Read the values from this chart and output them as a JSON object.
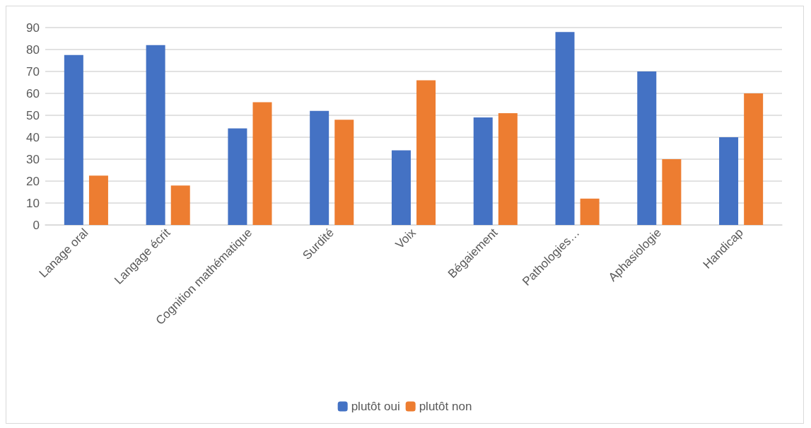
{
  "chart_data": {
    "type": "bar",
    "categories": [
      "Lanage oral",
      "Langage écrit",
      "Cognition mathématique",
      "Surdité",
      "Voix",
      "Bégaiement",
      "Pathologies…",
      "Aphasiologie",
      "Handicap"
    ],
    "series": [
      {
        "name": "plutôt oui",
        "color": "#4472c4",
        "values": [
          77.5,
          82,
          44,
          52,
          34,
          49,
          88,
          70,
          40
        ]
      },
      {
        "name": "plutôt non",
        "color": "#ed7d31",
        "values": [
          22.5,
          18,
          56,
          48,
          66,
          51,
          12,
          30,
          60
        ]
      }
    ],
    "ylim": [
      0,
      90
    ],
    "yticks": [
      0,
      10,
      20,
      30,
      40,
      50,
      60,
      70,
      80,
      90
    ],
    "grid": "y",
    "legend": "bottom"
  }
}
